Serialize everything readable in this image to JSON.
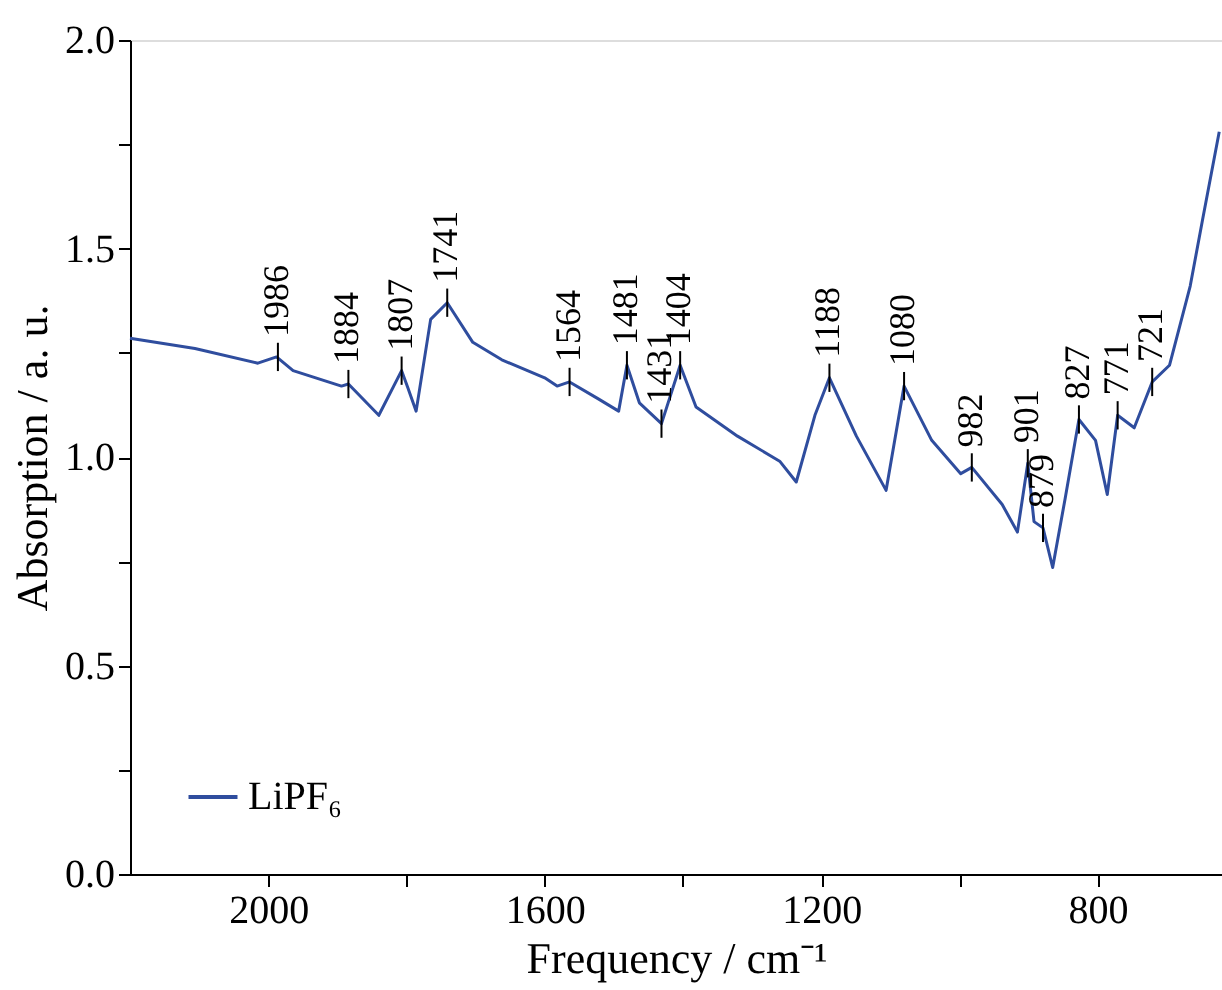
{
  "chart_data": {
    "type": "line",
    "xlabel": "Frequency / cm⁻¹",
    "ylabel": "Absorption / a. u.",
    "series": [
      {
        "name": "LiPF₆",
        "color": "#2f4d9e",
        "x": [
          2200,
          2106,
          2015,
          1988,
          1964,
          1894,
          1884,
          1840,
          1807,
          1798,
          1786,
          1765,
          1741,
          1704,
          1662,
          1600,
          1582,
          1564,
          1523,
          1493,
          1481,
          1463,
          1431,
          1404,
          1381,
          1321,
          1260,
          1236,
          1209,
          1188,
          1149,
          1106,
          1080,
          1040,
          998,
          982,
          938,
          916,
          901,
          892,
          879,
          865,
          847,
          827,
          803,
          786,
          771,
          747,
          721,
          696,
          666,
          648,
          624
        ],
        "values": [
          1.285,
          1.26,
          1.225,
          1.24,
          1.207,
          1.17,
          1.175,
          1.1,
          1.207,
          1.166,
          1.11,
          1.33,
          1.37,
          1.275,
          1.233,
          1.19,
          1.17,
          1.18,
          1.14,
          1.11,
          1.22,
          1.13,
          1.08,
          1.22,
          1.12,
          1.05,
          0.99,
          0.94,
          1.1,
          1.19,
          1.05,
          0.92,
          1.17,
          1.04,
          0.96,
          0.975,
          0.886,
          0.82,
          0.985,
          0.845,
          0.83,
          0.735,
          0.9,
          1.09,
          1.04,
          0.91,
          1.1,
          1.07,
          1.18,
          1.22,
          1.41,
          1.57,
          1.78
        ]
      }
    ],
    "annotations": [
      {
        "text": "1986",
        "x": 1986,
        "y": 1.24
      },
      {
        "text": "1884",
        "x": 1884,
        "y": 1.175
      },
      {
        "text": "1807",
        "x": 1807,
        "y": 1.207
      },
      {
        "text": "1741",
        "x": 1741,
        "y": 1.37
      },
      {
        "text": "1564",
        "x": 1564,
        "y": 1.18
      },
      {
        "text": "1481",
        "x": 1481,
        "y": 1.22
      },
      {
        "text": "1431",
        "x": 1431,
        "y": 1.08
      },
      {
        "text": "1404",
        "x": 1404,
        "y": 1.22
      },
      {
        "text": "1188",
        "x": 1188,
        "y": 1.19
      },
      {
        "text": "1080",
        "x": 1080,
        "y": 1.17
      },
      {
        "text": "982",
        "x": 982,
        "y": 0.975
      },
      {
        "text": "901",
        "x": 901,
        "y": 0.985
      },
      {
        "text": "879",
        "x": 879,
        "y": 0.83
      },
      {
        "text": "827",
        "x": 827,
        "y": 1.09
      },
      {
        "text": "771",
        "x": 771,
        "y": 1.1
      },
      {
        "text": "721",
        "x": 721,
        "y": 1.18
      }
    ],
    "xlim": [
      2200,
      620
    ],
    "xticks": [
      {
        "value": 2000,
        "label": "2000"
      },
      {
        "value": 1800,
        "label": null
      },
      {
        "value": 1600,
        "label": "1600"
      },
      {
        "value": 1400,
        "label": null
      },
      {
        "value": 1200,
        "label": "1200"
      },
      {
        "value": 1000,
        "label": null
      },
      {
        "value": 800,
        "label": "800"
      }
    ],
    "ylim": [
      0,
      2
    ],
    "yticks": [
      {
        "value": 0,
        "label": "0.0"
      },
      {
        "value": 0.25,
        "label": null
      },
      {
        "value": 0.5,
        "label": "0.5"
      },
      {
        "value": 0.75,
        "label": null
      },
      {
        "value": 1,
        "label": "1.0"
      },
      {
        "value": 1.25,
        "label": null
      },
      {
        "value": 1.5,
        "label": "1.5"
      },
      {
        "value": 1.75,
        "label": null
      },
      {
        "value": 2,
        "label": "2.0"
      }
    ],
    "legend": "bottom left",
    "grid": false,
    "marker": "none",
    "line_style": "solid"
  }
}
